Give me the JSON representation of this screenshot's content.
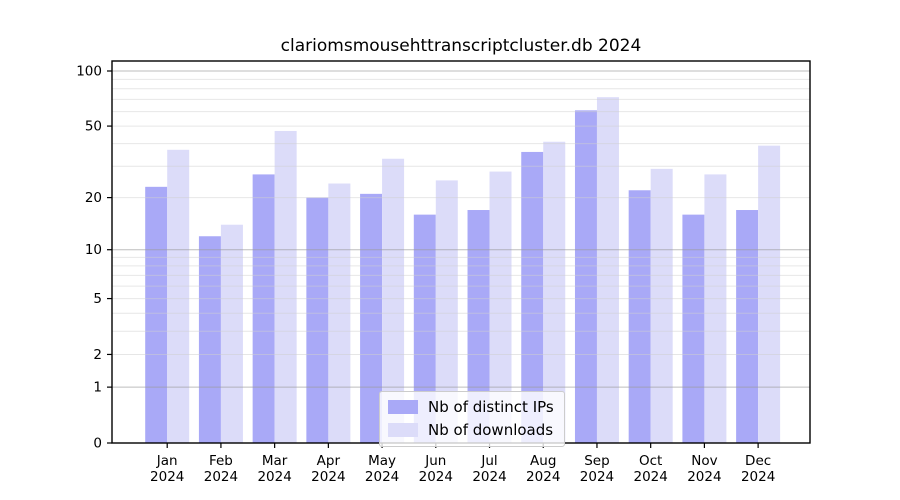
{
  "chart_data": {
    "type": "bar",
    "title": "clariomsmousehttranscriptcluster.db 2024",
    "xlabel": "",
    "ylabel": "",
    "categories": [
      "Jan",
      "Feb",
      "Mar",
      "Apr",
      "May",
      "Jun",
      "Jul",
      "Aug",
      "Sep",
      "Oct",
      "Nov",
      "Dec"
    ],
    "category_year": "2024",
    "series": [
      {
        "name": "Nb of distinct IPs",
        "color": "#a9a9f7",
        "values": [
          23,
          12,
          27,
          20,
          21,
          16,
          17,
          36,
          61,
          22,
          16,
          17
        ]
      },
      {
        "name": "Nb of downloads",
        "color": "#dcdcf9",
        "values": [
          37,
          14,
          47,
          24,
          33,
          25,
          28,
          41,
          72,
          29,
          27,
          39
        ]
      }
    ],
    "yscale": "log1p",
    "yticks": [
      0,
      1,
      2,
      5,
      10,
      20,
      50,
      100
    ],
    "major_gridlines": [
      1,
      10,
      100
    ],
    "minor_gridlines": [
      3,
      4,
      6,
      7,
      8,
      9,
      30,
      40,
      60,
      70,
      80,
      90
    ],
    "ylim": [
      0,
      113
    ],
    "grid": "horizontal",
    "legend_position": "bottom-center",
    "colors": {
      "frame": "#000000",
      "major_grid": "#9a9a9a",
      "minor_grid": "#cfcfcf",
      "text": "#000000"
    }
  }
}
